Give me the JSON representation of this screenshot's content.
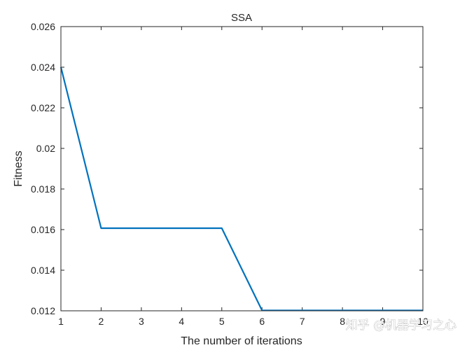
{
  "watermark": "知乎 @机器学习之心",
  "chart_data": {
    "type": "line",
    "title": "SSA",
    "xlabel": "The number of iterations",
    "ylabel": "Fitness",
    "xlim": [
      1,
      10
    ],
    "ylim": [
      0.012,
      0.026
    ],
    "xticks": [
      "1",
      "2",
      "3",
      "4",
      "5",
      "6",
      "7",
      "8",
      "9",
      "10"
    ],
    "yticks": [
      "0.012",
      "0.014",
      "0.016",
      "0.018",
      "0.02",
      "0.022",
      "0.024",
      "0.026"
    ],
    "grid": false,
    "series": [
      {
        "x": [
          1,
          2,
          3,
          4,
          5,
          6,
          7,
          8,
          9,
          10
        ],
        "y": [
          0.024,
          0.01607,
          0.01607,
          0.01607,
          0.01607,
          0.01202,
          0.01202,
          0.01202,
          0.01202,
          0.01202
        ],
        "color": "#0072BD"
      }
    ]
  }
}
